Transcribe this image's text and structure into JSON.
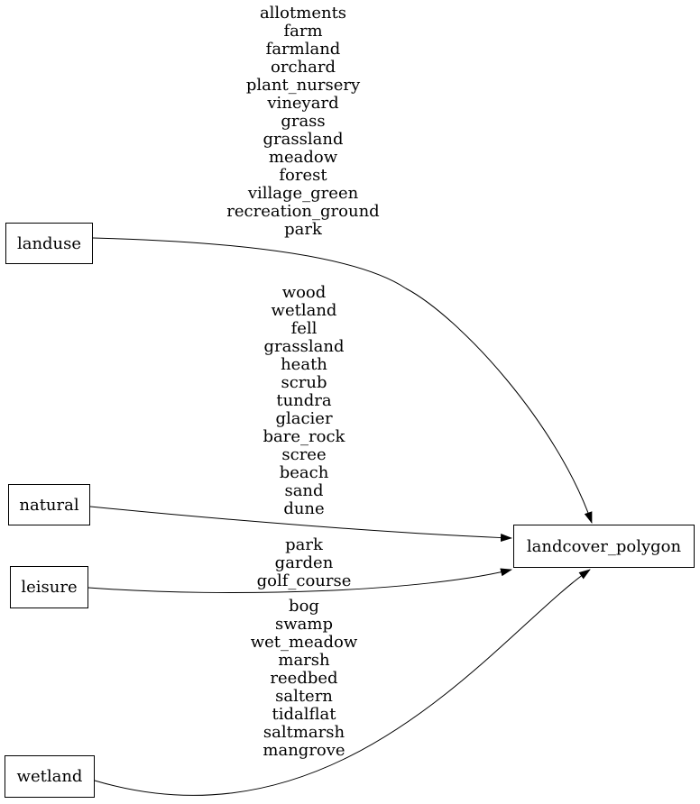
{
  "diagram": {
    "colors": {
      "background": "#ffffff",
      "node_border": "#000000",
      "node_fill": "#ffffff",
      "edge": "#000000",
      "text": "#000000"
    },
    "nodes": [
      {
        "id": "landuse",
        "label": "landuse"
      },
      {
        "id": "natural",
        "label": "natural"
      },
      {
        "id": "leisure",
        "label": "leisure"
      },
      {
        "id": "wetland",
        "label": "wetland"
      },
      {
        "id": "landcover_polygon",
        "label": "landcover_polygon"
      }
    ],
    "edges": [
      {
        "from": "landuse",
        "to": "landcover_polygon",
        "values": [
          "allotments",
          "farm",
          "farmland",
          "orchard",
          "plant_nursery",
          "vineyard",
          "grass",
          "grassland",
          "meadow",
          "forest",
          "village_green",
          "recreation_ground",
          "park"
        ]
      },
      {
        "from": "natural",
        "to": "landcover_polygon",
        "values": [
          "wood",
          "wetland",
          "fell",
          "grassland",
          "heath",
          "scrub",
          "tundra",
          "glacier",
          "bare_rock",
          "scree",
          "beach",
          "sand",
          "dune"
        ]
      },
      {
        "from": "leisure",
        "to": "landcover_polygon",
        "values": [
          "park",
          "garden",
          "golf_course"
        ]
      },
      {
        "from": "wetland",
        "to": "landcover_polygon",
        "values": [
          "bog",
          "swamp",
          "wet_meadow",
          "marsh",
          "reedbed",
          "saltern",
          "tidalflat",
          "saltmarsh",
          "mangrove"
        ]
      }
    ]
  }
}
